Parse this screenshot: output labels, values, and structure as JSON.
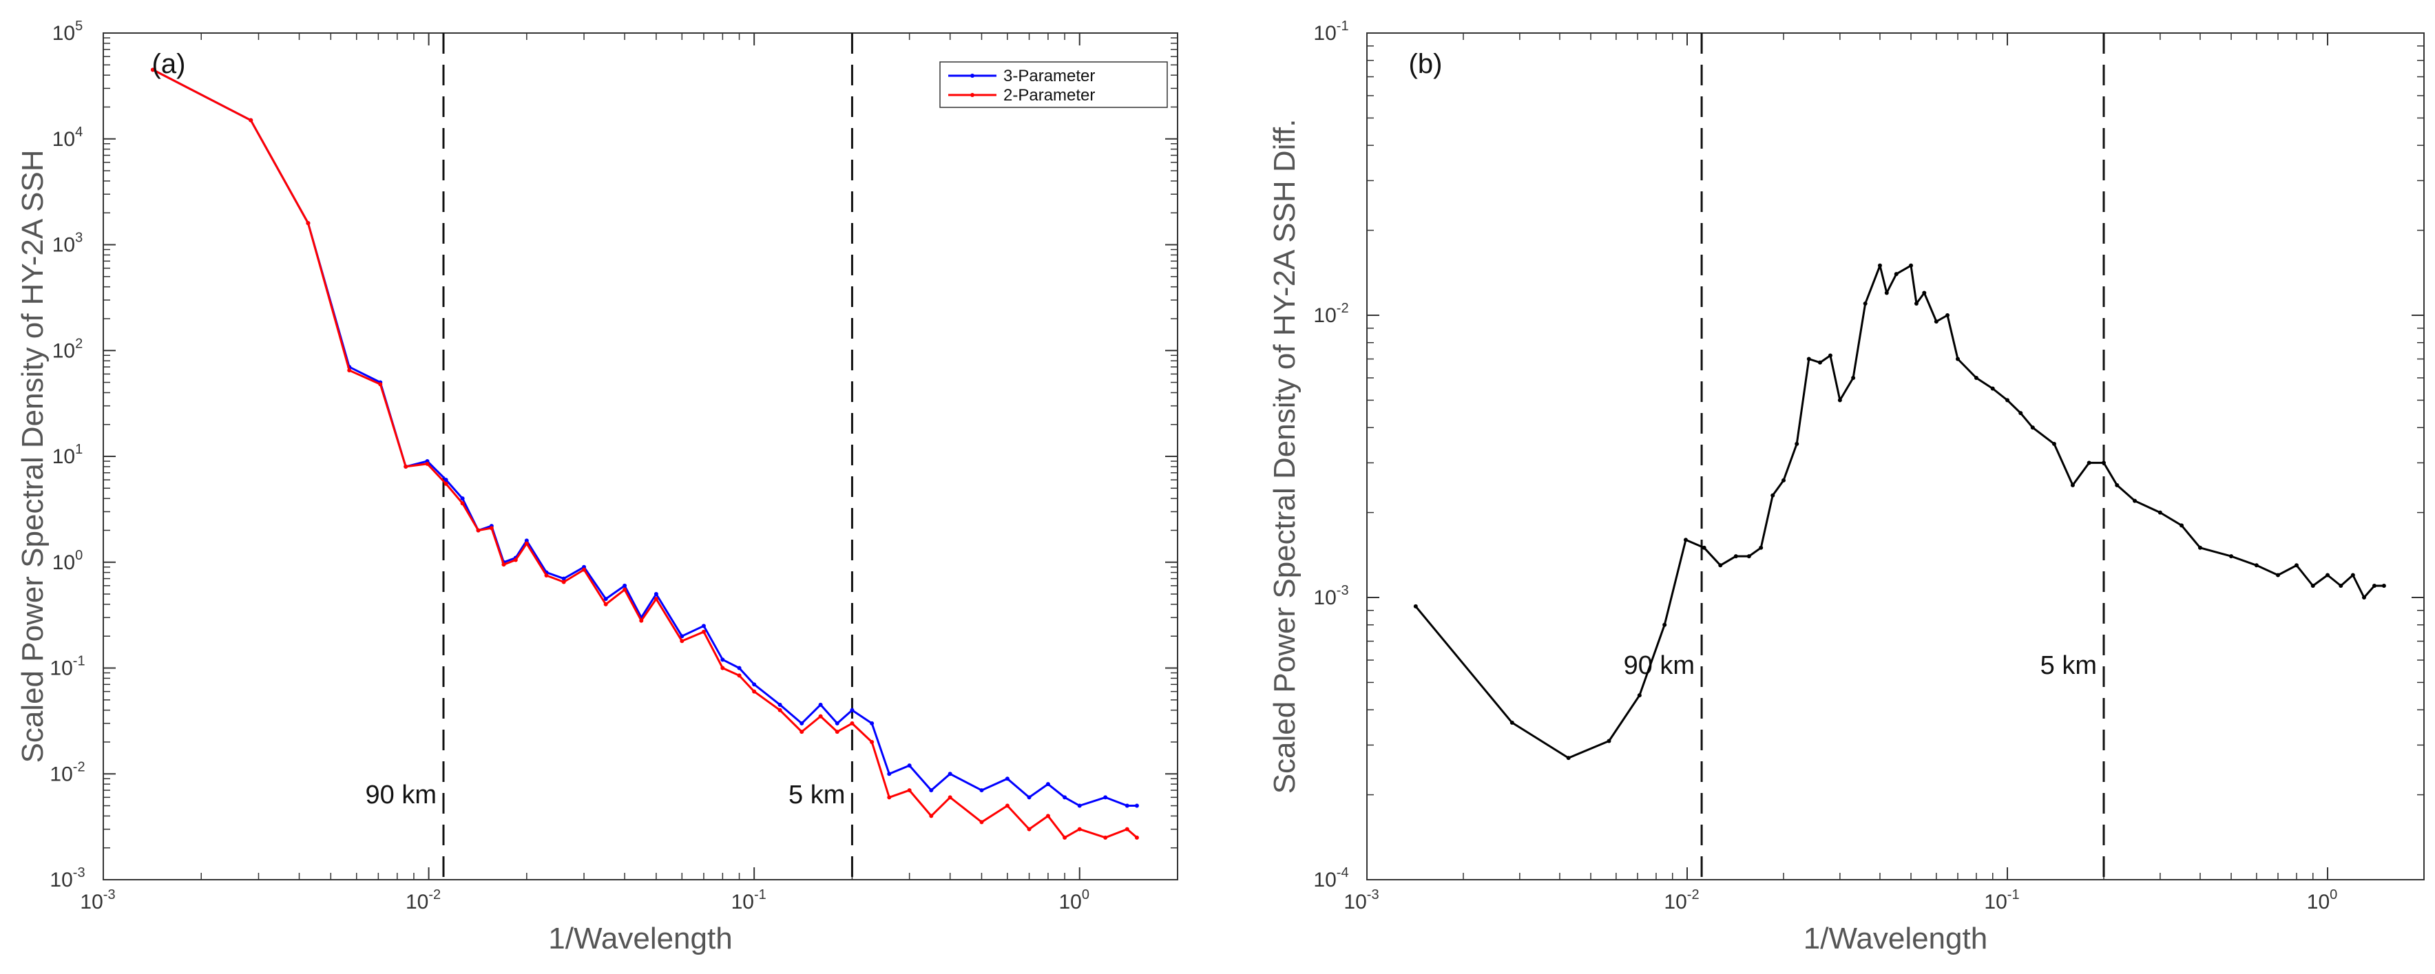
{
  "chart_data": [
    {
      "type": "line",
      "panel_label": "(a)",
      "xscale": "log",
      "yscale": "log",
      "xlim": [
        0.001,
        2
      ],
      "ylim": [
        0.001,
        100000
      ],
      "xlabel": "1/Wavelength",
      "ylabel": "Scaled Power Spectral Density of HY-2A SSH",
      "x_ticks": [
        {
          "base": "10",
          "exp": "-3"
        },
        {
          "base": "10",
          "exp": "-2"
        },
        {
          "base": "10",
          "exp": "-1"
        },
        {
          "base": "10",
          "exp": "0"
        }
      ],
      "y_ticks": [
        {
          "base": "10",
          "exp": "-3"
        },
        {
          "base": "10",
          "exp": "-2"
        },
        {
          "base": "10",
          "exp": "-1"
        },
        {
          "base": "10",
          "exp": "0"
        },
        {
          "base": "10",
          "exp": "1"
        },
        {
          "base": "10",
          "exp": "2"
        },
        {
          "base": "10",
          "exp": "3"
        },
        {
          "base": "10",
          "exp": "4"
        },
        {
          "base": "10",
          "exp": "5"
        }
      ],
      "vlines": [
        {
          "x": 0.0111,
          "label": "90 km",
          "label_y": 0.0065
        },
        {
          "x": 0.2,
          "label": "5 km",
          "label_y": 0.0065
        }
      ],
      "legend": {
        "position": "top-right",
        "entries": [
          "3-Parameter",
          "2-Parameter"
        ]
      },
      "series": [
        {
          "name": "3-Parameter",
          "color": "#0000ff",
          "x": [
            0.00142,
            0.00284,
            0.00426,
            0.0057,
            0.0071,
            0.0085,
            0.0099,
            0.0113,
            0.0127,
            0.0142,
            0.0156,
            0.017,
            0.0185,
            0.02,
            0.023,
            0.026,
            0.03,
            0.035,
            0.04,
            0.045,
            0.05,
            0.06,
            0.07,
            0.08,
            0.09,
            0.1,
            0.12,
            0.14,
            0.16,
            0.18,
            0.2,
            0.23,
            0.26,
            0.3,
            0.35,
            0.4,
            0.5,
            0.6,
            0.7,
            0.8,
            0.9,
            1.0,
            1.2,
            1.4,
            1.5
          ],
          "y": [
            45000,
            15000,
            1600,
            70,
            50,
            8,
            9,
            6,
            4,
            2,
            2.2,
            1.0,
            1.1,
            1.6,
            0.8,
            0.7,
            0.9,
            0.45,
            0.6,
            0.3,
            0.5,
            0.2,
            0.25,
            0.12,
            0.1,
            0.07,
            0.045,
            0.03,
            0.045,
            0.03,
            0.04,
            0.03,
            0.01,
            0.012,
            0.007,
            0.01,
            0.007,
            0.009,
            0.006,
            0.008,
            0.006,
            0.005,
            0.006,
            0.005,
            0.005
          ]
        },
        {
          "name": "2-Parameter",
          "color": "#ff0000",
          "x": [
            0.00142,
            0.00284,
            0.00426,
            0.0057,
            0.0071,
            0.0085,
            0.0099,
            0.0113,
            0.0127,
            0.0142,
            0.0156,
            0.017,
            0.0185,
            0.02,
            0.023,
            0.026,
            0.03,
            0.035,
            0.04,
            0.045,
            0.05,
            0.06,
            0.07,
            0.08,
            0.09,
            0.1,
            0.12,
            0.14,
            0.16,
            0.18,
            0.2,
            0.23,
            0.26,
            0.3,
            0.35,
            0.4,
            0.5,
            0.6,
            0.7,
            0.8,
            0.9,
            1.0,
            1.2,
            1.4,
            1.5
          ],
          "y": [
            45000,
            15000,
            1600,
            65,
            48,
            8,
            8.5,
            5.5,
            3.6,
            2,
            2.1,
            0.95,
            1.05,
            1.5,
            0.75,
            0.65,
            0.85,
            0.4,
            0.55,
            0.28,
            0.45,
            0.18,
            0.22,
            0.1,
            0.085,
            0.06,
            0.04,
            0.025,
            0.035,
            0.025,
            0.03,
            0.02,
            0.006,
            0.007,
            0.004,
            0.006,
            0.0035,
            0.005,
            0.003,
            0.004,
            0.0025,
            0.003,
            0.0025,
            0.003,
            0.0025
          ]
        }
      ]
    },
    {
      "type": "line",
      "panel_label": "(b)",
      "xscale": "log",
      "yscale": "log",
      "xlim": [
        0.001,
        2
      ],
      "ylim": [
        0.0001,
        0.1
      ],
      "xlabel": "1/Wavelength",
      "ylabel": "Scaled Power Spectral Density of HY-2A SSH Diff.",
      "x_ticks": [
        {
          "base": "10",
          "exp": "-3"
        },
        {
          "base": "10",
          "exp": "-2"
        },
        {
          "base": "10",
          "exp": "-1"
        },
        {
          "base": "10",
          "exp": "0"
        }
      ],
      "y_ticks": [
        {
          "base": "10",
          "exp": "-4"
        },
        {
          "base": "10",
          "exp": "-3"
        },
        {
          "base": "10",
          "exp": "-2"
        },
        {
          "base": "10",
          "exp": "-1"
        }
      ],
      "vlines": [
        {
          "x": 0.0111,
          "label": "90 km",
          "label_y": 0.00058
        },
        {
          "x": 0.2,
          "label": "5 km",
          "label_y": 0.00058
        }
      ],
      "series": [
        {
          "name": "Difference",
          "color": "#000000",
          "x": [
            0.00142,
            0.00284,
            0.00426,
            0.0057,
            0.0071,
            0.0085,
            0.0099,
            0.0113,
            0.0127,
            0.0142,
            0.0156,
            0.017,
            0.0185,
            0.02,
            0.022,
            0.024,
            0.026,
            0.028,
            0.03,
            0.033,
            0.036,
            0.04,
            0.042,
            0.045,
            0.05,
            0.052,
            0.055,
            0.06,
            0.065,
            0.07,
            0.08,
            0.09,
            0.1,
            0.11,
            0.12,
            0.14,
            0.16,
            0.18,
            0.2,
            0.22,
            0.25,
            0.3,
            0.35,
            0.4,
            0.5,
            0.6,
            0.7,
            0.8,
            0.9,
            1.0,
            1.1,
            1.2,
            1.3,
            1.4,
            1.5
          ],
          "y": [
            0.00093,
            0.00036,
            0.00027,
            0.00031,
            0.00045,
            0.0008,
            0.0016,
            0.0015,
            0.0013,
            0.0014,
            0.0014,
            0.0015,
            0.0023,
            0.0026,
            0.0035,
            0.007,
            0.0068,
            0.0072,
            0.005,
            0.006,
            0.011,
            0.015,
            0.012,
            0.014,
            0.015,
            0.011,
            0.012,
            0.0095,
            0.01,
            0.007,
            0.006,
            0.0055,
            0.005,
            0.0045,
            0.004,
            0.0035,
            0.0025,
            0.003,
            0.003,
            0.0025,
            0.0022,
            0.002,
            0.0018,
            0.0015,
            0.0014,
            0.0013,
            0.0012,
            0.0013,
            0.0011,
            0.0012,
            0.0011,
            0.0012,
            0.001,
            0.0011,
            0.0011
          ]
        }
      ]
    }
  ]
}
